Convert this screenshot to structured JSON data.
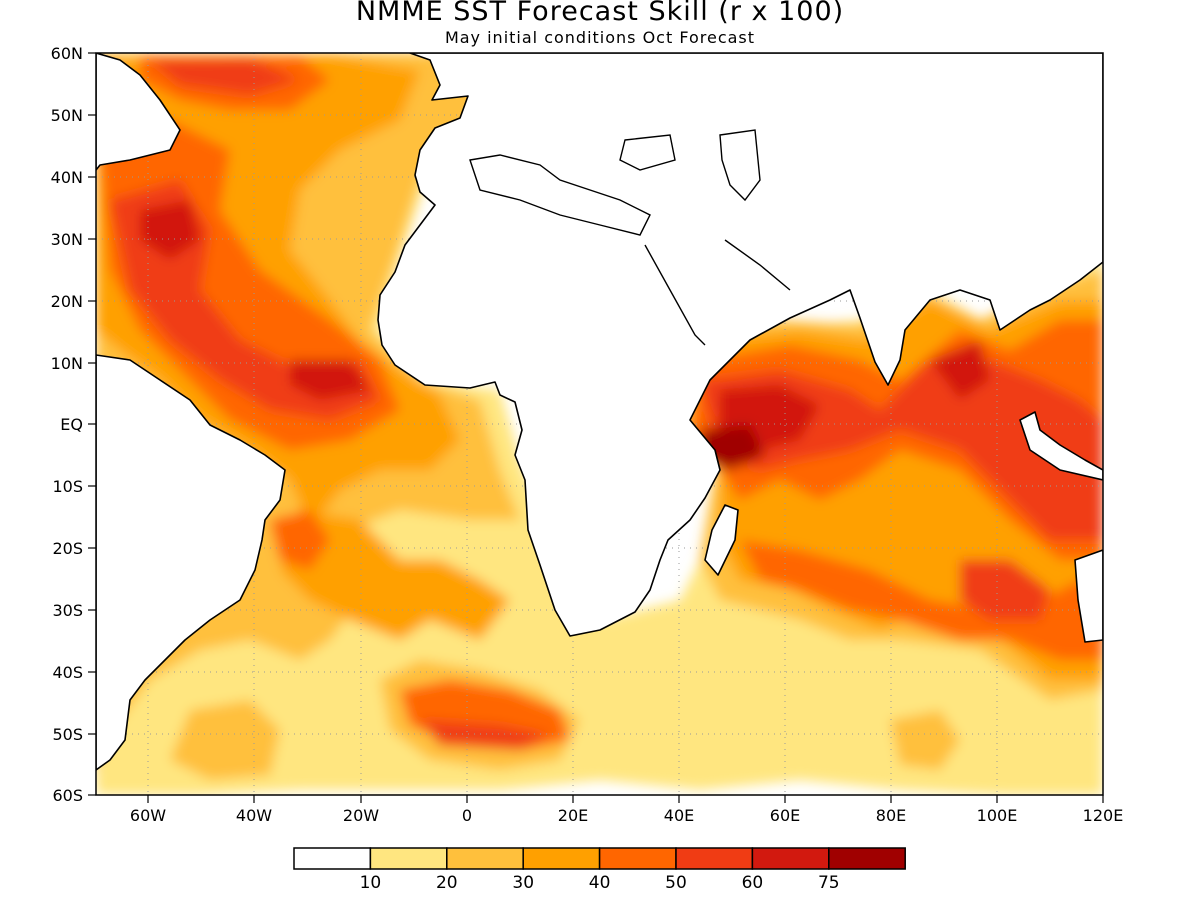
{
  "title": "NMME SST Forecast Skill (r x 100)",
  "subtitle": "May initial conditions  Oct Forecast",
  "lat_labels": [
    "60N",
    "50N",
    "40N",
    "30N",
    "20N",
    "10N",
    "EQ",
    "10S",
    "20S",
    "30S",
    "40S",
    "50S",
    "60S"
  ],
  "lon_labels": [
    "60W",
    "40W",
    "20W",
    "0",
    "20E",
    "40E",
    "60E",
    "80E",
    "100E",
    "120E"
  ],
  "colorbar": {
    "boundaries": [
      "10",
      "20",
      "30",
      "40",
      "50",
      "60",
      "75"
    ],
    "colors": [
      "#ffffff",
      "#ffe680",
      "#ffc03c",
      "#ffa000",
      "#ff6600",
      "#f03c14",
      "#d2190f",
      "#a00000"
    ]
  },
  "chart_data": {
    "type": "heatmap",
    "title": "NMME SST Forecast Skill (r x 100)",
    "subtitle": "May initial conditions  Oct Forecast",
    "region": {
      "lon_range": [
        -70,
        120
      ],
      "lat_range": [
        -60,
        60
      ]
    },
    "levels": [
      10,
      20,
      30,
      40,
      50,
      60,
      75
    ],
    "grid": true,
    "colorbar_position": "bottom"
  }
}
